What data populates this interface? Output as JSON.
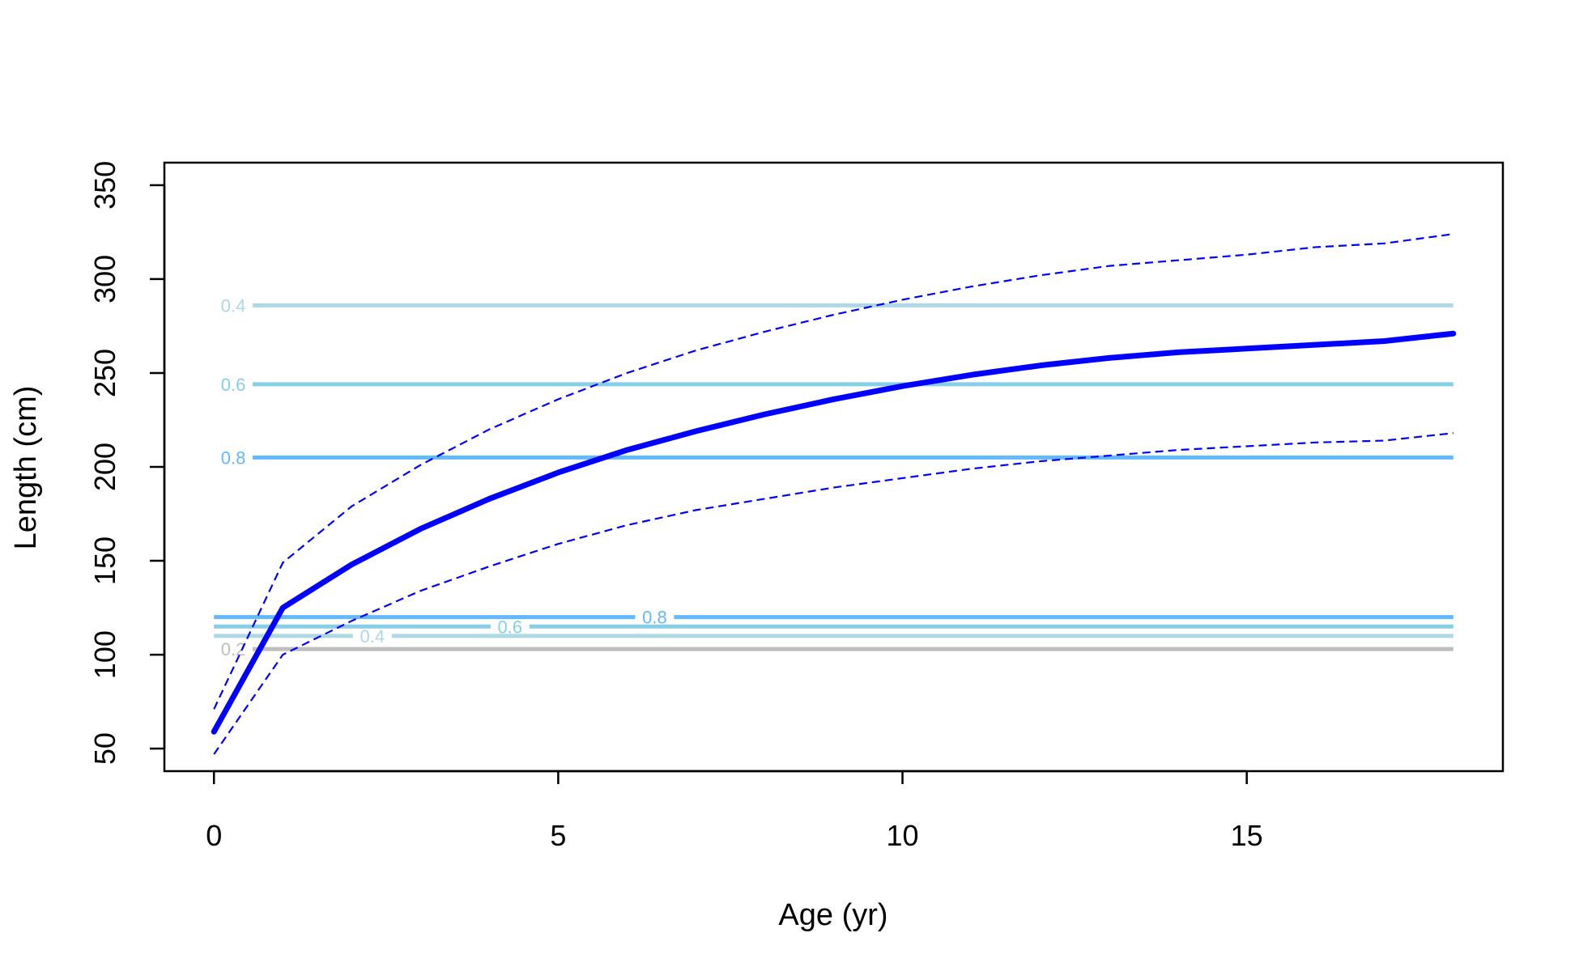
{
  "chart_data": {
    "type": "line",
    "title": "",
    "xlabel": "Age (yr)",
    "ylabel": "Length (cm)",
    "xlim": [
      -0.72,
      18.72
    ],
    "ylim": [
      38,
      362
    ],
    "x_ticks": [
      0,
      5,
      10,
      15
    ],
    "y_ticks": [
      50,
      100,
      150,
      200,
      250,
      300,
      350
    ],
    "grid": false,
    "legend": "none",
    "x": [
      0,
      1,
      2,
      3,
      4,
      5,
      6,
      7,
      8,
      9,
      10,
      11,
      12,
      13,
      14,
      15,
      16,
      17,
      18
    ],
    "series": [
      {
        "role": "mean",
        "style": "solid",
        "color": "#0000FF",
        "values": [
          59,
          125,
          148,
          167,
          183,
          197,
          209,
          219,
          228,
          236,
          243,
          249,
          254,
          258,
          261,
          263,
          265,
          267,
          271
        ]
      },
      {
        "role": "upper",
        "style": "dashed",
        "color": "#0000FF",
        "values": [
          71,
          149,
          179,
          201,
          220,
          236,
          250,
          262,
          272,
          281,
          289,
          296,
          302,
          307,
          310,
          313,
          317,
          319,
          324
        ]
      },
      {
        "role": "lower",
        "style": "dashed",
        "color": "#0000FF",
        "values": [
          47,
          100,
          118,
          134,
          147,
          159,
          169,
          177,
          183,
          189,
          194,
          199,
          203,
          206,
          209,
          211,
          213,
          214,
          218
        ]
      }
    ],
    "maturity_lines": [
      {
        "label": "0.4",
        "y": 286,
        "x_start": 0,
        "x_end": 18,
        "label_x": 0.28,
        "color": "#ADD8E6"
      },
      {
        "label": "0.6",
        "y": 244,
        "x_start": 0,
        "x_end": 18,
        "label_x": 0.28,
        "color": "#87CEEB"
      },
      {
        "label": "0.8",
        "y": 205,
        "x_start": 0,
        "x_end": 18,
        "label_x": 0.28,
        "color": "#63B8FF"
      },
      {
        "label": "0.8",
        "y": 120,
        "x_start": 0,
        "x_end": 18,
        "label_x": 6.4,
        "color": "#63B8FF"
      },
      {
        "label": "0.6",
        "y": 115,
        "x_start": 0,
        "x_end": 18,
        "label_x": 4.3,
        "color": "#87CEEB"
      },
      {
        "label": "0.4",
        "y": 110,
        "x_start": 0,
        "x_end": 18,
        "label_x": 2.3,
        "color": "#ADD8E6"
      },
      {
        "label": "0.2",
        "y": 103,
        "x_start": 0,
        "x_end": 18,
        "label_x": 0.28,
        "color": "#BEBEBE"
      }
    ]
  }
}
